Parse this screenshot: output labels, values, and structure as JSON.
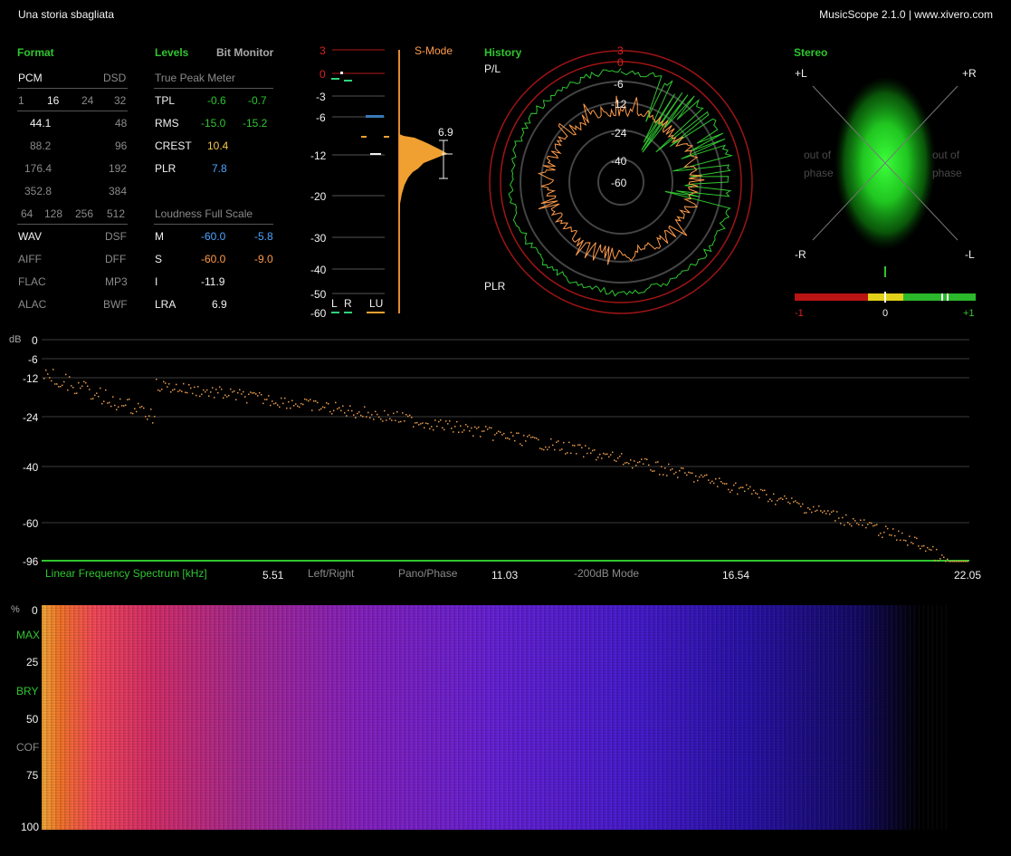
{
  "window": {
    "title": "Una storia sbagliata",
    "app": "MusicScope 2.1.0 | www.xivero.com"
  },
  "format": {
    "heading": "Format",
    "pcm": "PCM",
    "dsd": "DSD",
    "bits": [
      "1",
      "16",
      "24",
      "32"
    ],
    "rates": [
      [
        "44.1",
        "48"
      ],
      [
        "88.2",
        "96"
      ],
      [
        "176.4",
        "192"
      ],
      [
        "352.8",
        "384"
      ]
    ],
    "dsd_rates": [
      "64",
      "128",
      "256",
      "512"
    ],
    "containers": [
      [
        "WAV",
        "DSF"
      ],
      [
        "AIFF",
        "DFF"
      ],
      [
        "FLAC",
        "MP3"
      ],
      [
        "ALAC",
        "BWF"
      ]
    ]
  },
  "levels": {
    "heading": "Levels",
    "bit_monitor": "Bit Monitor",
    "true_peak_title": "True Peak Meter",
    "rows": [
      {
        "label": "TPL",
        "l": "-0.6",
        "r": "-0.7"
      },
      {
        "label": "RMS",
        "l": "-15.0",
        "r": "-15.2"
      },
      {
        "label": "CREST",
        "l": "10.4",
        "r": ""
      },
      {
        "label": "PLR",
        "l": "7.8",
        "r": ""
      }
    ],
    "loudness_title": "Loudness Full Scale",
    "loudness": [
      {
        "label": "M",
        "a": "-60.0",
        "b": "-5.8"
      },
      {
        "label": "S",
        "a": "-60.0",
        "b": "-9.0"
      },
      {
        "label": "I",
        "a": "-11.9",
        "b": ""
      },
      {
        "label": "LRA",
        "a": "6.9",
        "b": ""
      }
    ]
  },
  "meter": {
    "mode": "S-Mode",
    "scale": [
      "3",
      "0",
      "-3",
      "-6",
      "-12",
      "-20",
      "-30",
      "-40",
      "-50",
      "-60"
    ],
    "lra_value": "6.9",
    "channels": [
      "L",
      "R",
      "LU"
    ]
  },
  "history": {
    "heading": "History",
    "pl_label": "P/L",
    "plr_label": "PLR",
    "ring_labels": [
      "3",
      "0",
      "-6",
      "-12",
      "-24",
      "-40",
      "-60"
    ]
  },
  "stereo": {
    "heading": "Stereo",
    "corners": [
      "+L",
      "+R",
      "-R",
      "-L"
    ],
    "out_of_phase": [
      "out of",
      "phase"
    ],
    "correlation_scale": [
      "-1",
      "0",
      "+1"
    ]
  },
  "spectrum": {
    "ylabel": "dB",
    "y_ticks": [
      "0",
      "-6",
      "-12",
      "-24",
      "-40",
      "-60",
      "-96"
    ],
    "title": "Linear Frequency Spectrum [kHz]",
    "x_ticks": [
      "5.51",
      "11.03",
      "16.54",
      "22.05"
    ],
    "modes": [
      "Left/Right",
      "Pano/Phase",
      "-200dB Mode"
    ]
  },
  "spectrogram": {
    "ylabel": "%",
    "labels": [
      "0",
      "MAX",
      "25",
      "BRY",
      "50",
      "COF",
      "75",
      "100"
    ]
  },
  "colors": {
    "accent": "#2fc52f",
    "orange": "#ff9b4a",
    "blue": "#4ea3ff",
    "red": "#cc1f1f"
  }
}
